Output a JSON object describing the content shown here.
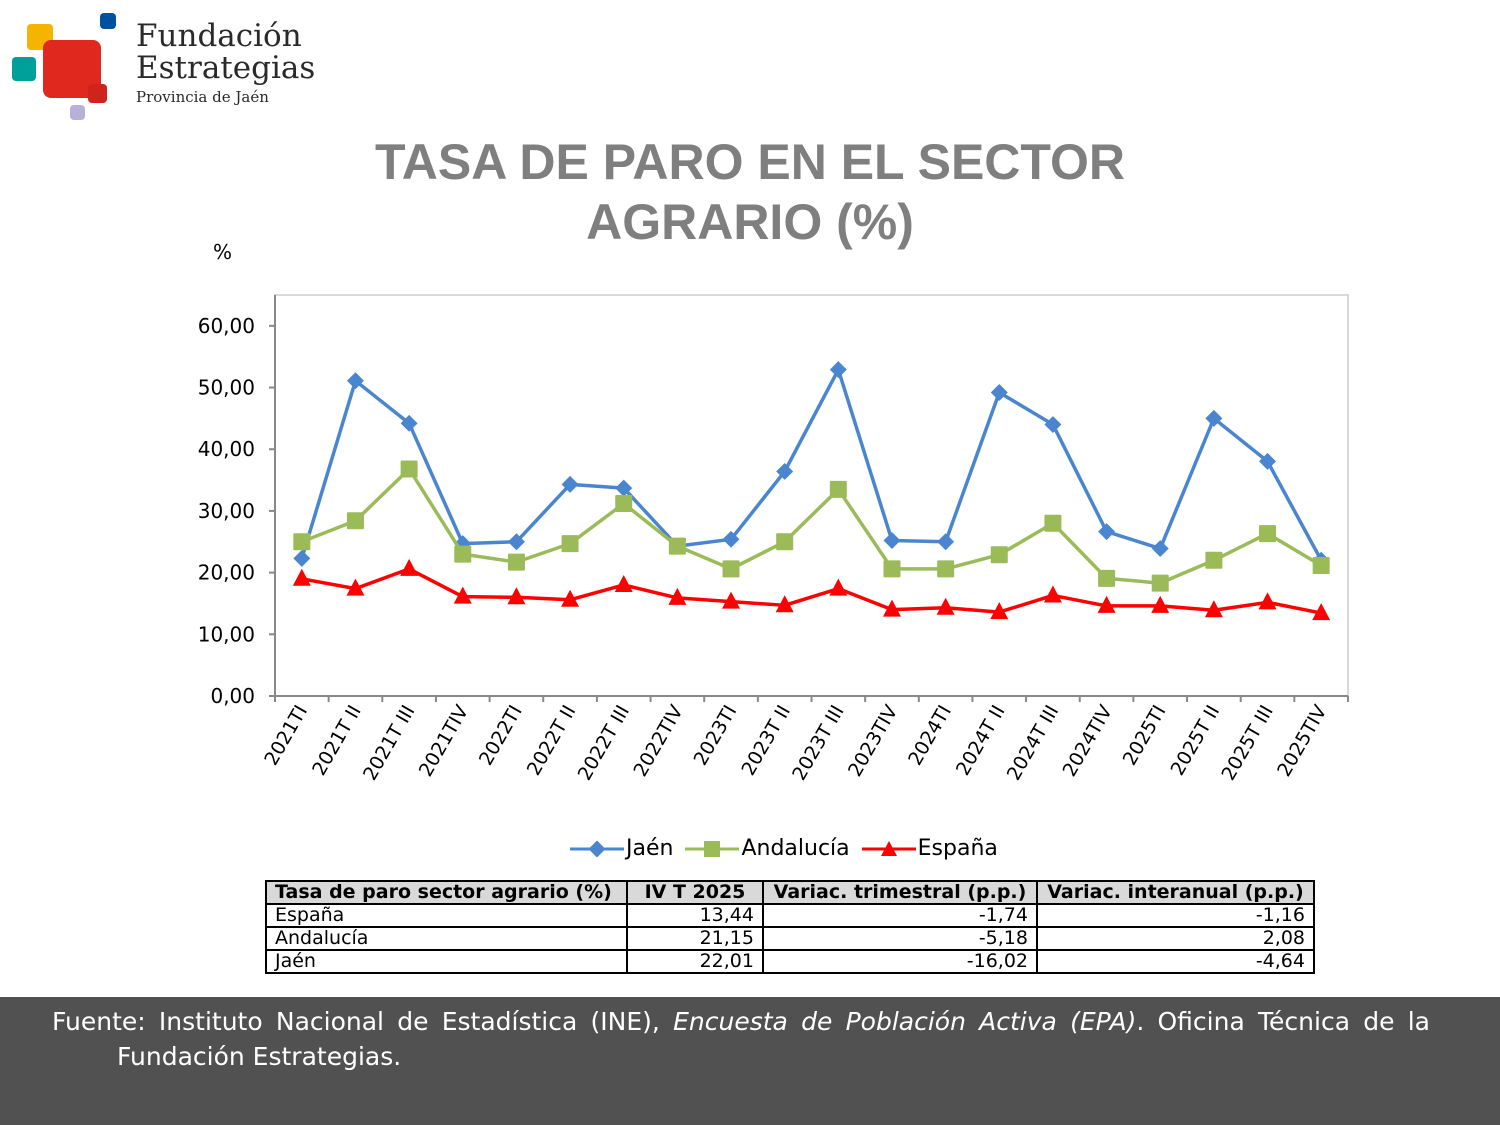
{
  "logo": {
    "line1": "Fundación",
    "line2": "Estrategias",
    "line3": "Provincia de Jaén"
  },
  "title": {
    "line1": "TASA DE PARO EN EL SECTOR",
    "line2": "AGRARIO (%)"
  },
  "chart_data": {
    "type": "line",
    "title": "TASA DE PARO EN EL SECTOR AGRARIO (%)",
    "ylabel": "%",
    "ylim": [
      0,
      65
    ],
    "yticks": [
      "0,00",
      "10,00",
      "20,00",
      "30,00",
      "40,00",
      "50,00",
      "60,00"
    ],
    "ytick_values": [
      0,
      10,
      20,
      30,
      40,
      50,
      60
    ],
    "grid": false,
    "legend": "bottom",
    "categories": [
      "2021TI",
      "2021TII",
      "2021TIII",
      "2021TIV",
      "2022TI",
      "2022TII",
      "2022TIII",
      "2022TIV",
      "2023TI",
      "2023TII",
      "2023TIII",
      "2023TIV",
      "2024TI",
      "2024TII",
      "2024TIII",
      "2024TIV",
      "2025TI",
      "2025TII",
      "2025TIII",
      "2025TIV"
    ],
    "series": [
      {
        "name": "Jaén",
        "color": "#4a86cf",
        "marker": "diamond",
        "values": [
          22.3,
          51.1,
          44.2,
          24.7,
          25.0,
          34.3,
          33.7,
          24.3,
          25.4,
          36.4,
          52.9,
          25.2,
          25.0,
          49.2,
          44.0,
          26.65,
          23.9,
          45.0,
          38.03,
          22.01
        ]
      },
      {
        "name": "Andalucía",
        "color": "#9bbb59",
        "marker": "square",
        "values": [
          25.0,
          28.4,
          36.8,
          23.0,
          21.7,
          24.7,
          31.2,
          24.3,
          20.6,
          25.0,
          33.5,
          20.6,
          20.6,
          22.9,
          28.0,
          19.07,
          18.3,
          22.0,
          26.33,
          21.15
        ]
      },
      {
        "name": "España",
        "color": "#ff0000",
        "marker": "triangle",
        "values": [
          19.0,
          17.4,
          20.6,
          16.1,
          16.0,
          15.6,
          18.0,
          15.9,
          15.3,
          14.7,
          17.4,
          14.0,
          14.3,
          13.6,
          16.3,
          14.6,
          14.6,
          13.9,
          15.18,
          13.44
        ]
      }
    ]
  },
  "table": {
    "headers": [
      "Tasa de paro sector agrario (%)",
      "IV T 2025",
      "Variac. trimestral (p.p.)",
      "Variac. interanual (p.p.)"
    ],
    "rows": [
      [
        "España",
        "13,44",
        "-1,74",
        "-1,16"
      ],
      [
        "Andalucía",
        "21,15",
        "-5,18",
        "2,08"
      ],
      [
        "Jaén",
        "22,01",
        "-16,02",
        "-4,64"
      ]
    ]
  },
  "footer": {
    "line1_a": "Fuente: Instituto Nacional de Estadística (INE),",
    "line1_italic": "Encuesta de Población Activa (EPA)",
    "line1_b": ". Oficina Técnica de la",
    "line2": "Fundación Estrategias."
  }
}
